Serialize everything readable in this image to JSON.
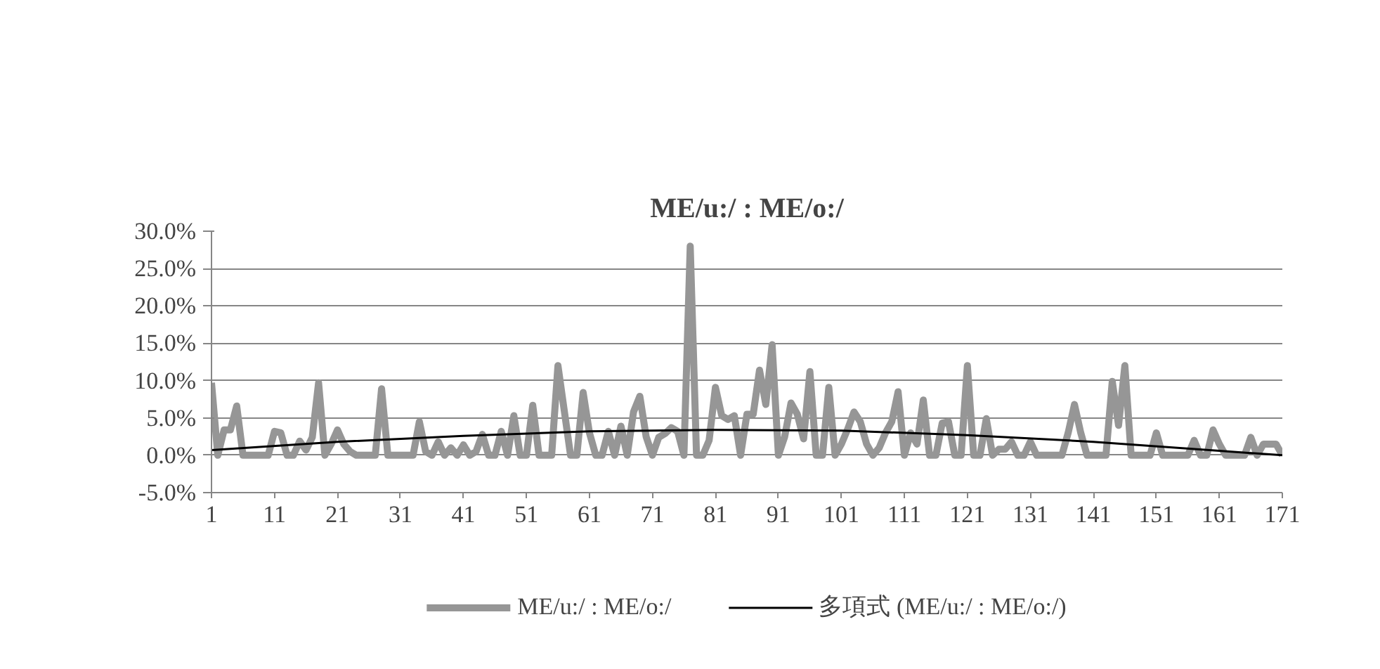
{
  "chart_data": {
    "type": "line",
    "title": "ME/u:/ : ME/o:/",
    "x": [
      1,
      2,
      3,
      4,
      5,
      6,
      7,
      8,
      9,
      10,
      11,
      12,
      13,
      14,
      15,
      16,
      17,
      18,
      19,
      20,
      21,
      22,
      23,
      24,
      25,
      26,
      27,
      28,
      29,
      30,
      31,
      32,
      33,
      34,
      35,
      36,
      37,
      38,
      39,
      40,
      41,
      42,
      43,
      44,
      45,
      46,
      47,
      48,
      49,
      50,
      51,
      52,
      53,
      54,
      55,
      56,
      57,
      58,
      59,
      60,
      61,
      62,
      63,
      64,
      65,
      66,
      67,
      68,
      69,
      70,
      71,
      72,
      73,
      74,
      75,
      76,
      77,
      78,
      79,
      80,
      81,
      82,
      83,
      84,
      85,
      86,
      87,
      88,
      89,
      90,
      91,
      92,
      93,
      94,
      95,
      96,
      97,
      98,
      99,
      100,
      101,
      102,
      103,
      104,
      105,
      106,
      107,
      108,
      109,
      110,
      111,
      112,
      113,
      114,
      115,
      116,
      117,
      118,
      119,
      120,
      121,
      122,
      123,
      124,
      125,
      126,
      127,
      128,
      129,
      130,
      131,
      132,
      133,
      134,
      135,
      136,
      137,
      138,
      139,
      140,
      141,
      142,
      143,
      144,
      145,
      146,
      147,
      148,
      149,
      150,
      151,
      152,
      153,
      154,
      155,
      156,
      157,
      158,
      159,
      160,
      161,
      162,
      163,
      164,
      165,
      166,
      167,
      168,
      169,
      170,
      171
    ],
    "series": [
      {
        "name": "ME/u:/ : ME/o:/",
        "color": "#969696",
        "values": [
          9.7,
          0,
          3.4,
          3.4,
          6.6,
          0,
          0,
          0,
          0,
          0,
          3.2,
          3.0,
          0,
          0,
          1.9,
          0.7,
          2.4,
          9.7,
          0,
          1.5,
          3.4,
          1.5,
          0.5,
          0,
          0,
          0,
          0,
          8.9,
          0,
          0,
          0,
          0,
          0,
          4.5,
          0.5,
          0,
          1.8,
          0,
          1.0,
          0,
          1.4,
          0,
          0.5,
          2.8,
          0,
          0,
          3.2,
          0,
          5.3,
          0,
          0,
          6.7,
          0,
          0,
          0,
          12.0,
          6.0,
          0,
          0,
          8.4,
          3.0,
          0,
          0,
          3.2,
          0,
          3.9,
          0,
          5.8,
          7.9,
          2.5,
          0,
          2.4,
          2.9,
          3.7,
          3.2,
          0,
          28.0,
          0,
          0,
          2.0,
          9.1,
          5.3,
          4.8,
          5.3,
          0,
          5.5,
          5.5,
          11.4,
          6.8,
          14.8,
          0,
          2.5,
          7.0,
          5.5,
          2.2,
          11.2,
          0,
          0,
          9.1,
          0,
          1.5,
          3.5,
          5.8,
          4.5,
          1.5,
          0,
          1.0,
          3.0,
          4.5,
          8.5,
          0,
          3.0,
          1.5,
          7.4,
          0,
          0,
          4.3,
          4.5,
          0,
          0,
          12.0,
          0,
          0,
          4.9,
          0,
          0.8,
          0.8,
          1.8,
          0,
          0,
          1.8,
          0,
          0,
          0,
          0,
          0,
          3.0,
          6.8,
          3.0,
          0,
          0,
          0,
          0,
          9.9,
          4.0,
          12.0,
          0,
          0,
          0,
          0,
          3.0,
          0,
          0,
          0,
          0,
          0,
          2.0,
          0,
          0,
          3.4,
          1.5,
          0,
          0,
          0,
          0,
          2.4,
          0,
          1.5,
          1.5,
          1.5,
          0
        ]
      },
      {
        "name": "多項式 (ME/u:/ : ME/o:/)",
        "color": "#000000",
        "x": [
          1,
          21,
          41,
          61,
          81,
          101,
          121,
          141,
          161,
          171
        ],
        "values": [
          0.7,
          1.8,
          2.6,
          3.2,
          3.4,
          3.3,
          2.7,
          1.8,
          0.6,
          0.0
        ]
      }
    ],
    "xlim": [
      1,
      171
    ],
    "xticks": [
      1,
      11,
      21,
      31,
      41,
      51,
      61,
      71,
      81,
      91,
      101,
      111,
      121,
      131,
      141,
      151,
      161,
      171
    ],
    "ylim": [
      -5,
      30
    ],
    "yticks": [
      {
        "value": -5,
        "label": "-5.0%"
      },
      {
        "value": 0,
        "label": "0.0%"
      },
      {
        "value": 5,
        "label": "5.0%"
      },
      {
        "value": 10,
        "label": "10.0%"
      },
      {
        "value": 15,
        "label": "15.0%"
      },
      {
        "value": 20,
        "label": "20.0%"
      },
      {
        "value": 25,
        "label": "25.0%"
      },
      {
        "value": 30,
        "label": "30.0%"
      }
    ],
    "grid": "y",
    "legend": "bottom",
    "marker": "none",
    "line_style": "solid"
  }
}
